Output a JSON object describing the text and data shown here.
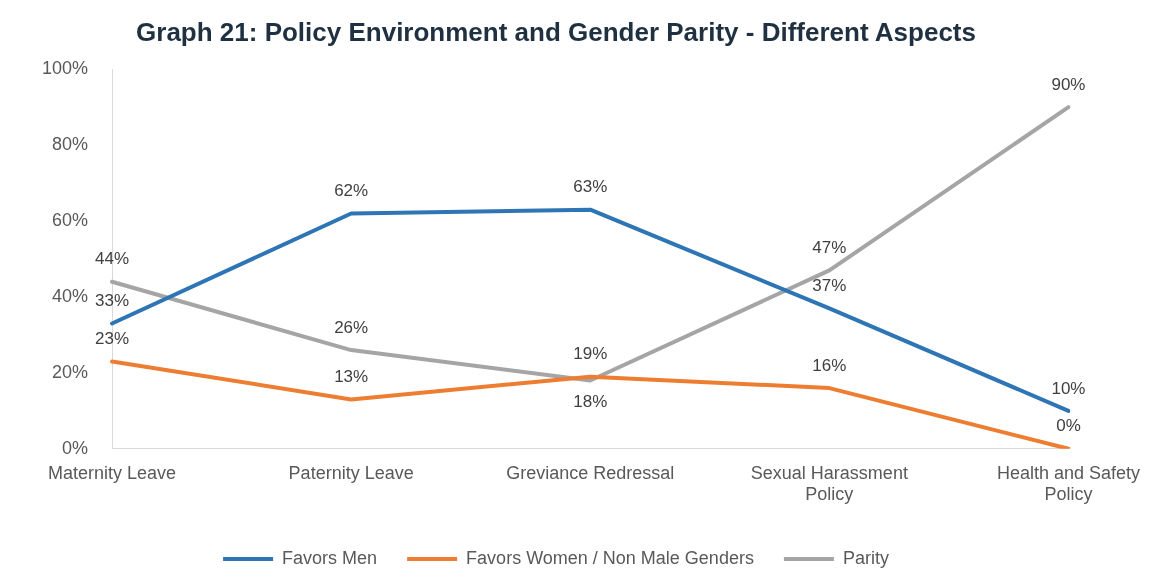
{
  "chart_data": {
    "type": "line",
    "title": "Graph 21: Policy Environment and Gender Parity - Different Aspects",
    "categories": [
      "Maternity Leave",
      "Paternity Leave",
      "Greviance Redressal",
      "Sexual Harassment Policy",
      "Health and Safety Policy"
    ],
    "series": [
      {
        "name": "Favors Men",
        "color": "#2e75b6",
        "values": [
          33,
          62,
          63,
          37,
          10
        ],
        "value_labels": [
          "33%",
          "62%",
          "63%",
          "37%",
          "10%"
        ]
      },
      {
        "name": "Favors Women / Non Male Genders",
        "color": "#ed7d31",
        "values": [
          23,
          13,
          19,
          16,
          0
        ],
        "value_labels": [
          "23%",
          "13%",
          "19%",
          "16%",
          "0%"
        ]
      },
      {
        "name": "Parity",
        "color": "#a5a5a5",
        "values": [
          44,
          26,
          18,
          47,
          90
        ],
        "value_labels": [
          "44%",
          "26%",
          "18%",
          "47%",
          "90%"
        ]
      }
    ],
    "ylim": [
      0,
      100
    ],
    "yticks": [
      {
        "value": 0,
        "label": "0%"
      },
      {
        "value": 20,
        "label": "20%"
      },
      {
        "value": 40,
        "label": "40%"
      },
      {
        "value": 60,
        "label": "60%"
      },
      {
        "value": 80,
        "label": "80%"
      },
      {
        "value": 100,
        "label": "100%"
      }
    ],
    "grid": false,
    "legend": "bottom",
    "marker": "none",
    "line_style": "solid"
  }
}
